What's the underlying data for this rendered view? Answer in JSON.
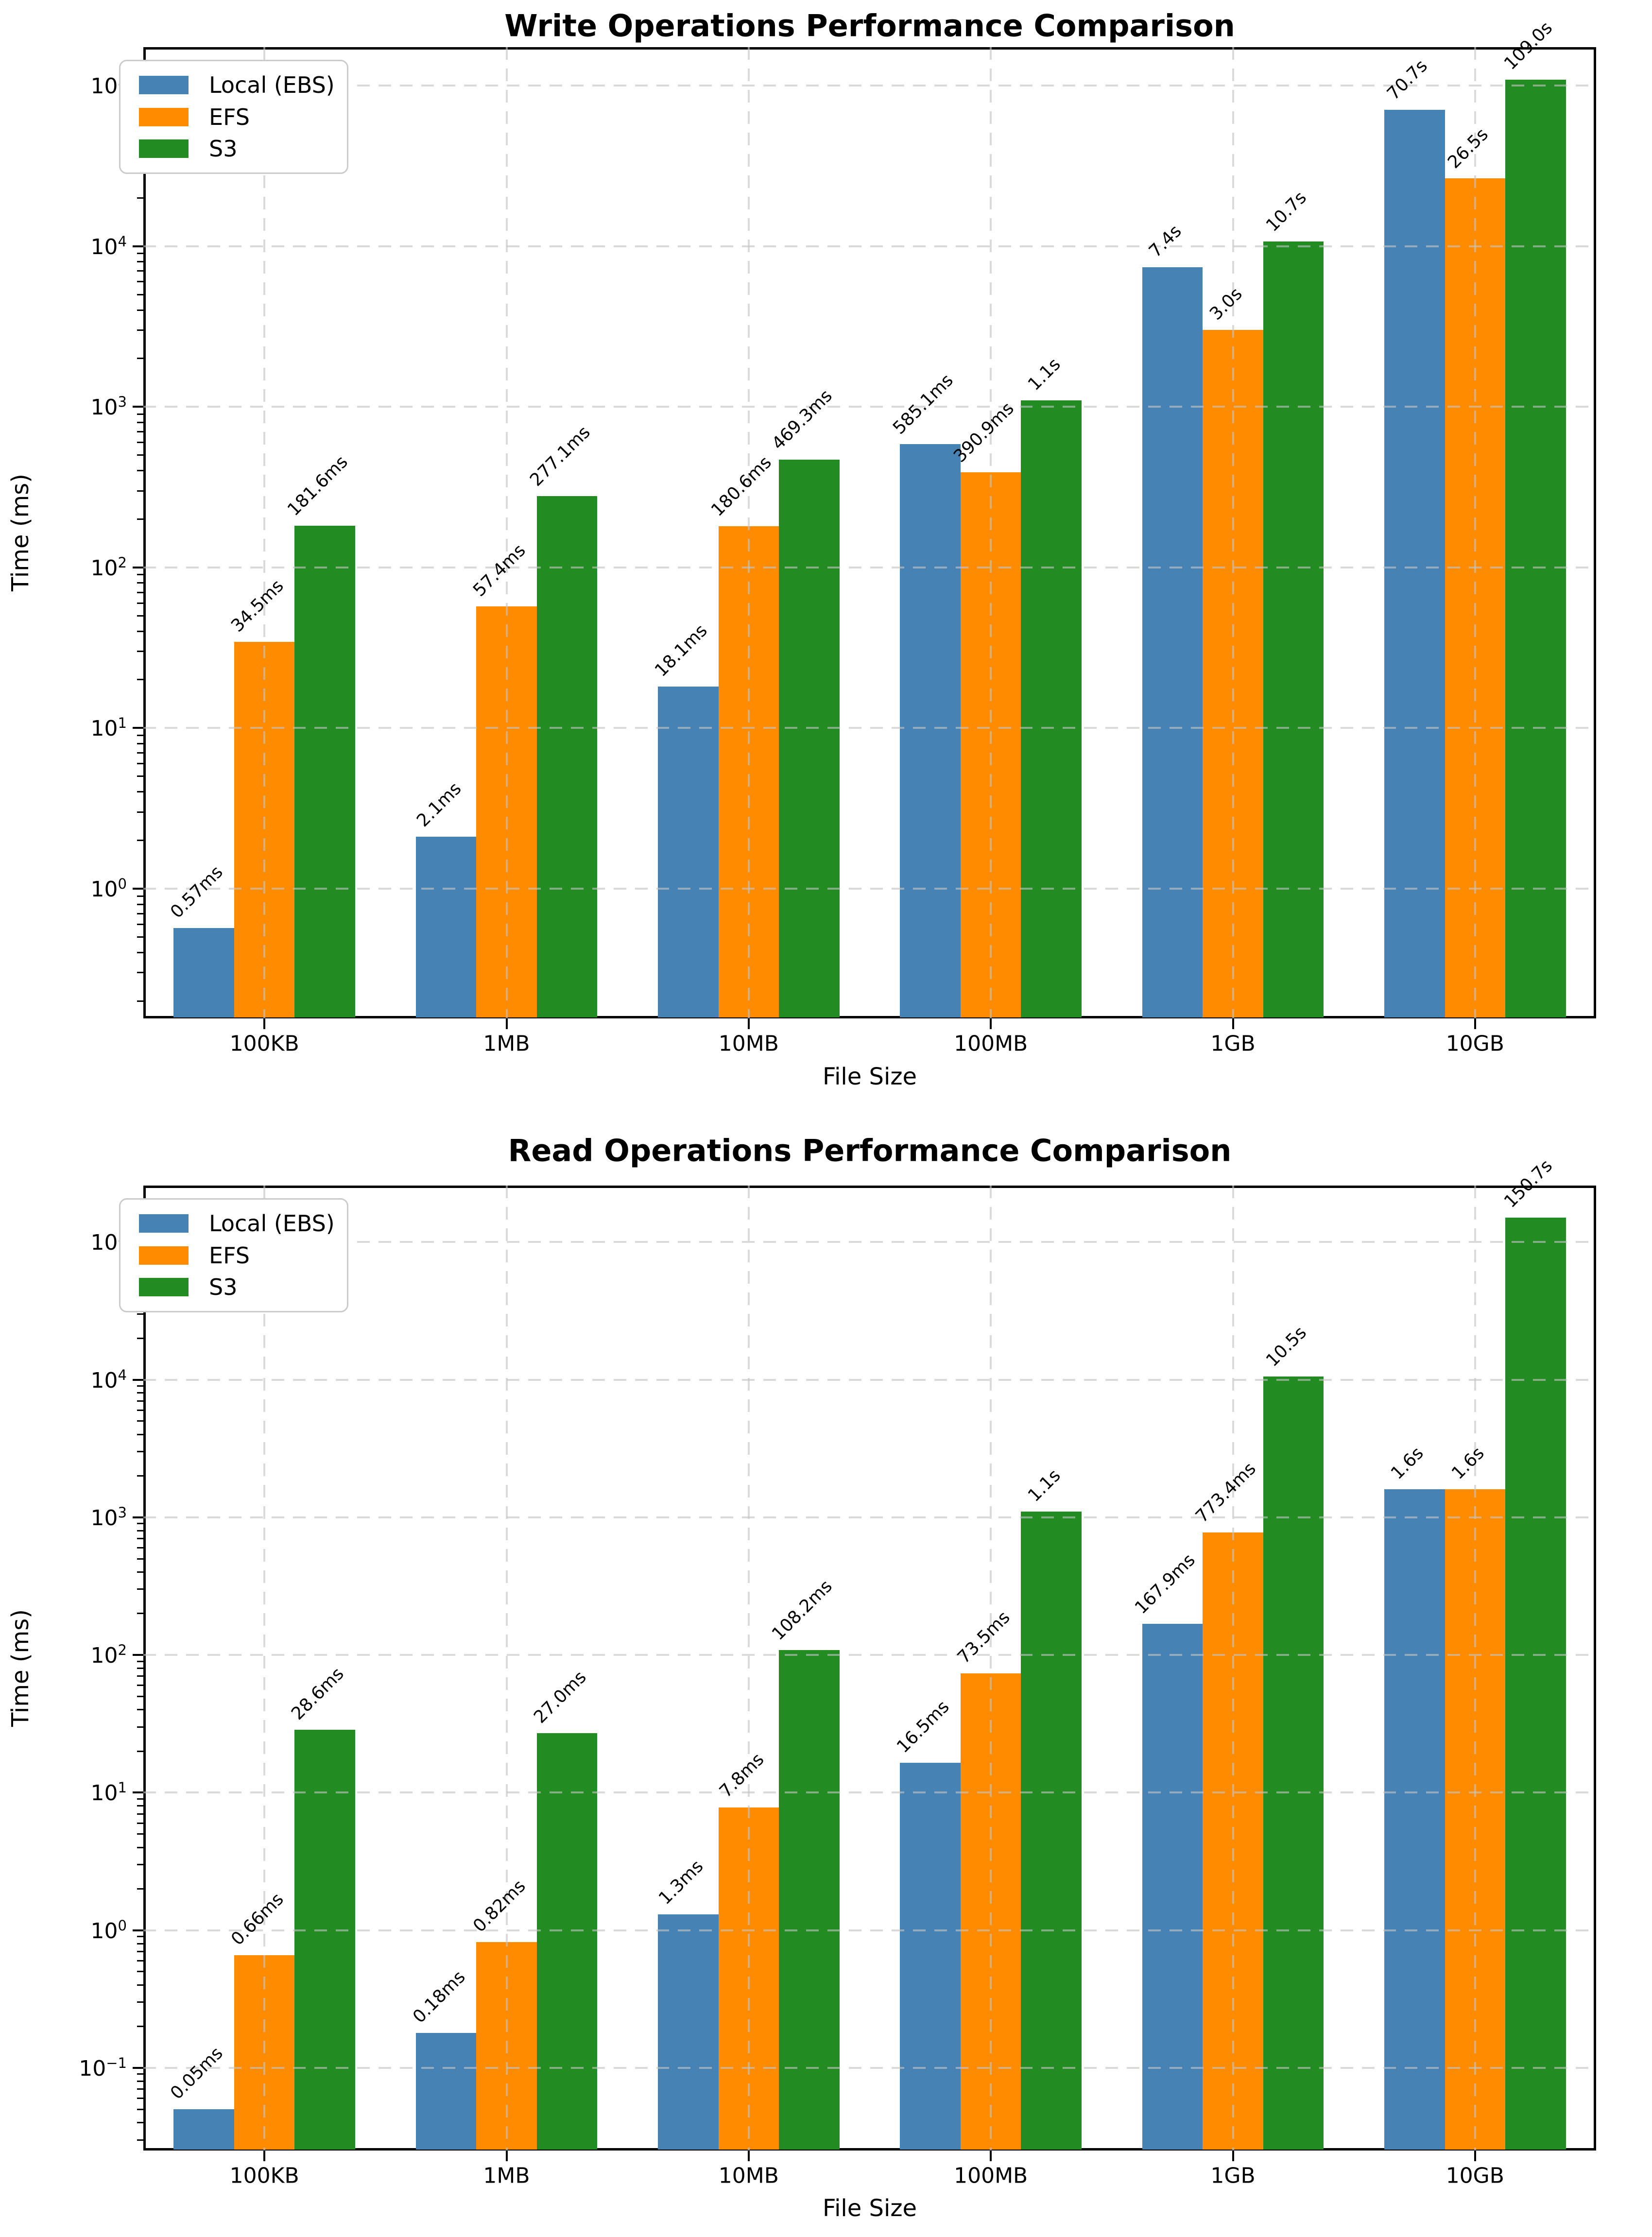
{
  "chart_data": [
    {
      "type": "bar",
      "title": "Write Operations Performance Comparison",
      "xlabel": "File Size",
      "ylabel": "Time (ms)",
      "log_scale_y": true,
      "grid": "dashed",
      "legend_position": "upper left",
      "categories": [
        "100KB",
        "1MB",
        "10MB",
        "100MB",
        "1GB",
        "10GB"
      ],
      "y_tick_exponents": [
        0,
        1,
        2,
        3,
        4,
        5
      ],
      "ylim": [
        0.156,
        173000
      ],
      "series": [
        {
          "name": "Local (EBS)",
          "color": "#4682B4",
          "values": [
            0.57,
            2.1,
            18.1,
            585.1,
            7400,
            70700
          ],
          "labels": [
            "0.57ms",
            "2.1ms",
            "18.1ms",
            "585.1ms",
            "7.4s",
            "70.7s"
          ]
        },
        {
          "name": "EFS",
          "color": "#FF8C00",
          "values": [
            34.5,
            57.4,
            180.6,
            390.9,
            3000,
            26500
          ],
          "labels": [
            "34.5ms",
            "57.4ms",
            "180.6ms",
            "390.9ms",
            "3.0s",
            "26.5s"
          ]
        },
        {
          "name": "S3",
          "color": "#228B22",
          "values": [
            181.6,
            277.1,
            469.3,
            1100,
            10700,
            109000
          ],
          "labels": [
            "181.6ms",
            "277.1ms",
            "469.3ms",
            "1.1s",
            "10.7s",
            "109.0s"
          ]
        }
      ]
    },
    {
      "type": "bar",
      "title": "Read Operations Performance Comparison",
      "xlabel": "File Size",
      "ylabel": "Time (ms)",
      "log_scale_y": true,
      "grid": "dashed",
      "legend_position": "upper left",
      "categories": [
        "100KB",
        "1MB",
        "10MB",
        "100MB",
        "1GB",
        "10GB"
      ],
      "y_tick_exponents": [
        -1,
        0,
        1,
        2,
        3,
        4,
        5
      ],
      "ylim": [
        0.025,
        307000
      ],
      "series": [
        {
          "name": "Local (EBS)",
          "color": "#4682B4",
          "values": [
            0.05,
            0.18,
            1.3,
            16.5,
            167.9,
            1600
          ],
          "labels": [
            "0.05ms",
            "0.18ms",
            "1.3ms",
            "16.5ms",
            "167.9ms",
            "1.6s"
          ]
        },
        {
          "name": "EFS",
          "color": "#FF8C00",
          "values": [
            0.66,
            0.82,
            7.8,
            73.5,
            773.4,
            1600
          ],
          "labels": [
            "0.66ms",
            "0.82ms",
            "7.8ms",
            "73.5ms",
            "773.4ms",
            "1.6s"
          ]
        },
        {
          "name": "S3",
          "color": "#228B22",
          "values": [
            28.6,
            27.0,
            108.2,
            1100,
            10500,
            150700
          ],
          "labels": [
            "28.6ms",
            "27.0ms",
            "108.2ms",
            "1.1s",
            "10.5s",
            "150.7s"
          ]
        }
      ]
    }
  ]
}
